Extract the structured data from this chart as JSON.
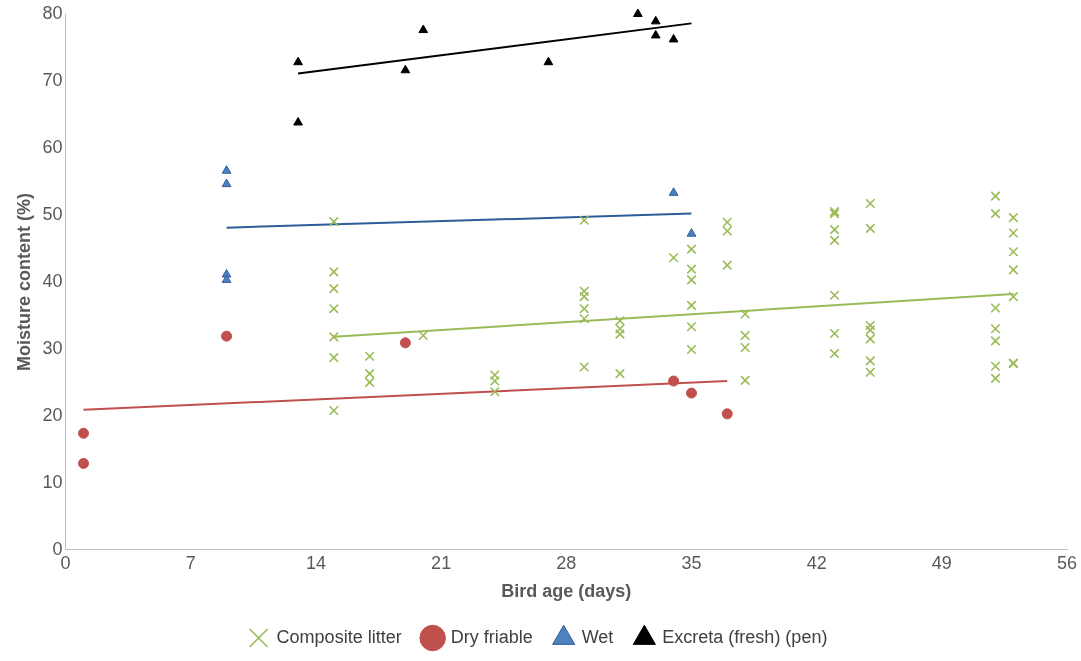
{
  "chart_data": {
    "type": "scatter",
    "xlabel": "Bird age (days)",
    "ylabel": "Moisture content (%)",
    "xlim": [
      0,
      56
    ],
    "xticks": [
      0,
      7,
      14,
      21,
      28,
      35,
      42,
      49,
      56
    ],
    "ylim": [
      0,
      80
    ],
    "yticks": [
      0,
      10,
      20,
      30,
      40,
      50,
      60,
      70,
      80
    ],
    "grid": false,
    "legend": "bottom",
    "series": [
      {
        "name": "Composite litter",
        "color": "#9bbb59",
        "marker": "cross",
        "x": [
          15,
          15,
          15,
          15,
          15,
          15,
          15,
          17,
          17,
          17,
          20,
          24,
          24,
          24,
          29,
          29,
          29,
          29,
          29,
          29,
          31,
          31,
          31,
          31,
          34,
          35,
          35,
          35,
          35,
          35,
          35,
          37,
          37,
          37,
          38,
          38,
          38,
          38,
          43,
          43,
          43,
          43,
          43,
          43,
          43,
          45,
          45,
          45,
          45,
          45,
          45,
          45,
          52,
          52,
          52,
          52,
          52,
          52,
          52,
          53,
          53,
          53,
          53,
          53,
          53,
          53
        ],
        "values": [
          49,
          41.5,
          39,
          36,
          31.8,
          28.7,
          20.8,
          28.9,
          26.3,
          25,
          32,
          26.1,
          25.2,
          23.6,
          49.2,
          38.6,
          37.8,
          36,
          34.5,
          27.3,
          34.2,
          33,
          32.2,
          26.3,
          43.6,
          44.9,
          41.9,
          40.3,
          36.5,
          33.3,
          29.9,
          48.9,
          47.6,
          42.5,
          35.2,
          32,
          30.2,
          25.3,
          50.5,
          50.2,
          47.8,
          46.2,
          38,
          32.3,
          29.3,
          51.7,
          48,
          33.5,
          32.8,
          31.5,
          28.2,
          26.5,
          52.8,
          50.2,
          36.1,
          33,
          31.2,
          27.4,
          25.6,
          49.6,
          47.3,
          44.5,
          41.8,
          37.8,
          27.9,
          27.8
        ]
      },
      {
        "name": "Dry friable",
        "color": "#c0504d",
        "marker": "circle",
        "x": [
          1,
          1,
          9,
          19,
          34,
          35,
          37
        ],
        "values": [
          17.4,
          12.9,
          31.9,
          30.9,
          25.2,
          23.4,
          20.3
        ]
      },
      {
        "name": "Wet",
        "color": "#4f81bd",
        "marker": "triangle",
        "x": [
          9,
          9,
          9,
          9,
          34,
          35
        ],
        "values": [
          56.6,
          54.6,
          41.1,
          40.3,
          53.3,
          47.2
        ]
      },
      {
        "name": "Excreta (fresh) (pen)",
        "color": "#000000",
        "marker": "triangle",
        "x": [
          13,
          13,
          19,
          20,
          27,
          32,
          33,
          33,
          34
        ],
        "values": [
          72.8,
          63.8,
          71.6,
          77.6,
          72.8,
          80,
          78.9,
          76.8,
          76.2
        ]
      },
      {
        "type": "line",
        "color": "#9bbb59",
        "marker": "none",
        "x": [
          15,
          53
        ],
        "values": [
          31.8,
          38.2
        ]
      },
      {
        "type": "line",
        "color": "#c0504d",
        "marker": "none",
        "x": [
          1,
          37
        ],
        "values": [
          20.9,
          25.2
        ]
      },
      {
        "type": "line",
        "color": "#2c5d9a",
        "marker": "none",
        "x": [
          9,
          35
        ],
        "values": [
          48.1,
          50.2
        ]
      },
      {
        "type": "line",
        "color": "#000000",
        "marker": "none",
        "x": [
          13,
          35
        ],
        "values": [
          71.1,
          78.6
        ]
      }
    ]
  }
}
